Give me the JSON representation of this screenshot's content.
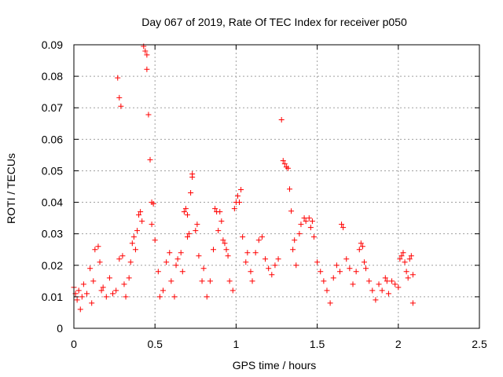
{
  "chart_data": {
    "type": "scatter",
    "title": "Day 067 of 2019, Rate Of TEC Index for receiver p050",
    "xlabel": "GPS time / hours",
    "ylabel": "ROTI / TECUs",
    "xlim": [
      0,
      2.5
    ],
    "ylim": [
      0,
      0.09
    ],
    "x_ticks": [
      0,
      0.5,
      1,
      1.5,
      2,
      2.5
    ],
    "x_tick_labels": [
      "0",
      "0.5",
      "1",
      "1.5",
      "2",
      "2.5"
    ],
    "y_ticks": [
      0,
      0.01,
      0.02,
      0.03,
      0.04,
      0.05,
      0.06,
      0.07,
      0.08,
      0.09
    ],
    "y_tick_labels": [
      "0",
      "0.01",
      "0.02",
      "0.03",
      "0.04",
      "0.05",
      "0.06",
      "0.07",
      "0.08",
      "0.09"
    ],
    "grid": true,
    "marker": "+",
    "color": "#ff0000",
    "series": [
      {
        "name": "ROTI",
        "points": [
          [
            0.0,
            0.013
          ],
          [
            0.01,
            0.011
          ],
          [
            0.02,
            0.009
          ],
          [
            0.03,
            0.012
          ],
          [
            0.04,
            0.006
          ],
          [
            0.05,
            0.01
          ],
          [
            0.06,
            0.014
          ],
          [
            0.08,
            0.011
          ],
          [
            0.1,
            0.019
          ],
          [
            0.11,
            0.008
          ],
          [
            0.12,
            0.015
          ],
          [
            0.13,
            0.025
          ],
          [
            0.15,
            0.026
          ],
          [
            0.16,
            0.021
          ],
          [
            0.17,
            0.012
          ],
          [
            0.18,
            0.013
          ],
          [
            0.2,
            0.01
          ],
          [
            0.22,
            0.016
          ],
          [
            0.24,
            0.011
          ],
          [
            0.26,
            0.012
          ],
          [
            0.27,
            0.0795
          ],
          [
            0.28,
            0.0732
          ],
          [
            0.29,
            0.0705
          ],
          [
            0.28,
            0.022
          ],
          [
            0.3,
            0.023
          ],
          [
            0.31,
            0.014
          ],
          [
            0.32,
            0.01
          ],
          [
            0.34,
            0.016
          ],
          [
            0.35,
            0.021
          ],
          [
            0.36,
            0.027
          ],
          [
            0.37,
            0.029
          ],
          [
            0.38,
            0.025
          ],
          [
            0.39,
            0.031
          ],
          [
            0.4,
            0.036
          ],
          [
            0.41,
            0.037
          ],
          [
            0.42,
            0.034
          ],
          [
            0.43,
            0.0895
          ],
          [
            0.44,
            0.088
          ],
          [
            0.45,
            0.0868
          ],
          [
            0.45,
            0.0822
          ],
          [
            0.46,
            0.0678
          ],
          [
            0.47,
            0.0535
          ],
          [
            0.48,
            0.04
          ],
          [
            0.49,
            0.0395
          ],
          [
            0.48,
            0.033
          ],
          [
            0.5,
            0.028
          ],
          [
            0.52,
            0.018
          ],
          [
            0.53,
            0.01
          ],
          [
            0.55,
            0.012
          ],
          [
            0.57,
            0.021
          ],
          [
            0.59,
            0.024
          ],
          [
            0.6,
            0.015
          ],
          [
            0.62,
            0.01
          ],
          [
            0.63,
            0.02
          ],
          [
            0.64,
            0.022
          ],
          [
            0.66,
            0.024
          ],
          [
            0.67,
            0.018
          ],
          [
            0.68,
            0.037
          ],
          [
            0.69,
            0.038
          ],
          [
            0.7,
            0.036
          ],
          [
            0.7,
            0.029
          ],
          [
            0.71,
            0.03
          ],
          [
            0.72,
            0.043
          ],
          [
            0.73,
            0.048
          ],
          [
            0.73,
            0.049
          ],
          [
            0.75,
            0.031
          ],
          [
            0.76,
            0.033
          ],
          [
            0.77,
            0.023
          ],
          [
            0.79,
            0.015
          ],
          [
            0.8,
            0.019
          ],
          [
            0.82,
            0.01
          ],
          [
            0.84,
            0.015
          ],
          [
            0.86,
            0.025
          ],
          [
            0.87,
            0.038
          ],
          [
            0.88,
            0.037
          ],
          [
            0.89,
            0.031
          ],
          [
            0.9,
            0.037
          ],
          [
            0.91,
            0.034
          ],
          [
            0.92,
            0.028
          ],
          [
            0.93,
            0.027
          ],
          [
            0.94,
            0.025
          ],
          [
            0.95,
            0.023
          ],
          [
            0.96,
            0.015
          ],
          [
            0.98,
            0.012
          ],
          [
            0.99,
            0.038
          ],
          [
            1.0,
            0.04
          ],
          [
            1.01,
            0.042
          ],
          [
            1.02,
            0.04
          ],
          [
            1.03,
            0.044
          ],
          [
            1.04,
            0.029
          ],
          [
            1.06,
            0.021
          ],
          [
            1.07,
            0.024
          ],
          [
            1.09,
            0.018
          ],
          [
            1.1,
            0.015
          ],
          [
            1.12,
            0.024
          ],
          [
            1.14,
            0.028
          ],
          [
            1.16,
            0.029
          ],
          [
            1.18,
            0.022
          ],
          [
            1.2,
            0.019
          ],
          [
            1.22,
            0.017
          ],
          [
            1.24,
            0.02
          ],
          [
            1.26,
            0.022
          ],
          [
            1.28,
            0.0662
          ],
          [
            1.29,
            0.0532
          ],
          [
            1.3,
            0.0522
          ],
          [
            1.31,
            0.0512
          ],
          [
            1.32,
            0.0508
          ],
          [
            1.33,
            0.0442
          ],
          [
            1.34,
            0.0372
          ],
          [
            1.35,
            0.025
          ],
          [
            1.36,
            0.028
          ],
          [
            1.37,
            0.02
          ],
          [
            1.39,
            0.03
          ],
          [
            1.4,
            0.033
          ],
          [
            1.42,
            0.035
          ],
          [
            1.43,
            0.034
          ],
          [
            1.45,
            0.035
          ],
          [
            1.46,
            0.032
          ],
          [
            1.47,
            0.034
          ],
          [
            1.48,
            0.029
          ],
          [
            1.5,
            0.021
          ],
          [
            1.52,
            0.018
          ],
          [
            1.54,
            0.015
          ],
          [
            1.56,
            0.012
          ],
          [
            1.58,
            0.008
          ],
          [
            1.6,
            0.016
          ],
          [
            1.62,
            0.02
          ],
          [
            1.64,
            0.018
          ],
          [
            1.65,
            0.033
          ],
          [
            1.66,
            0.032
          ],
          [
            1.68,
            0.022
          ],
          [
            1.7,
            0.019
          ],
          [
            1.72,
            0.014
          ],
          [
            1.74,
            0.018
          ],
          [
            1.76,
            0.025
          ],
          [
            1.77,
            0.027
          ],
          [
            1.78,
            0.026
          ],
          [
            1.79,
            0.021
          ],
          [
            1.8,
            0.019
          ],
          [
            1.82,
            0.015
          ],
          [
            1.84,
            0.012
          ],
          [
            1.86,
            0.009
          ],
          [
            1.88,
            0.014
          ],
          [
            1.9,
            0.012
          ],
          [
            1.92,
            0.016
          ],
          [
            1.93,
            0.015
          ],
          [
            1.94,
            0.011
          ],
          [
            1.96,
            0.015
          ],
          [
            1.98,
            0.014
          ],
          [
            2.0,
            0.013
          ],
          [
            2.01,
            0.022
          ],
          [
            2.02,
            0.023
          ],
          [
            2.03,
            0.024
          ],
          [
            2.04,
            0.021
          ],
          [
            2.05,
            0.018
          ],
          [
            2.06,
            0.016
          ],
          [
            2.07,
            0.022
          ],
          [
            2.08,
            0.023
          ],
          [
            2.09,
            0.017
          ],
          [
            2.09,
            0.008
          ]
        ]
      }
    ]
  }
}
